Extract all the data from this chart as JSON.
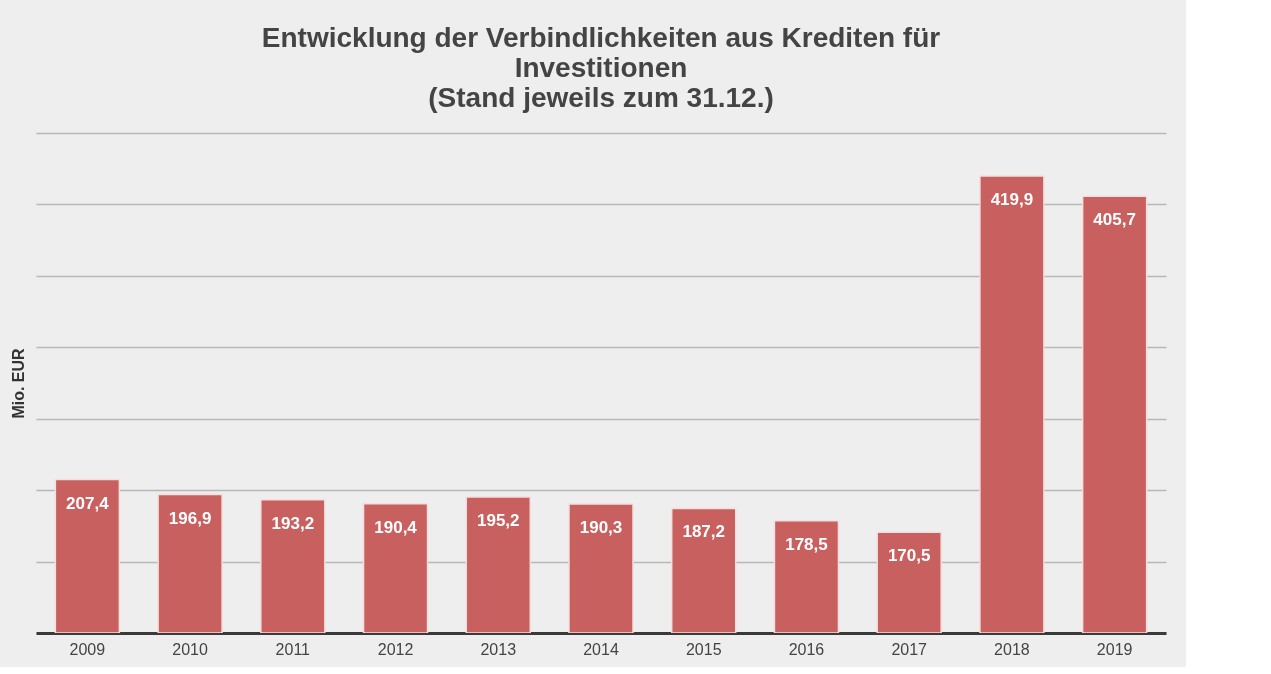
{
  "chart_data": {
    "type": "bar",
    "title": "Entwicklung der Verbindlichkeiten aus Krediten für\nInvestitionen\n(Stand jeweils zum 31.12.)",
    "ylabel": "Mio. EUR",
    "categories": [
      "2009",
      "2010",
      "2011",
      "2012",
      "2013",
      "2014",
      "2015",
      "2016",
      "2017",
      "2018",
      "2019"
    ],
    "values": [
      207.4,
      196.9,
      193.2,
      190.4,
      195.2,
      190.3,
      187.2,
      178.5,
      170.5,
      419.9,
      405.7
    ],
    "color": "#c8605f",
    "ylim": [
      100,
      450
    ],
    "yticks": [
      {
        "value": 100,
        "label": null
      },
      {
        "value": 150,
        "label": null
      },
      {
        "value": 200,
        "label": null
      },
      {
        "value": 250,
        "label": null
      },
      {
        "value": 300,
        "label": null
      },
      {
        "value": 350,
        "label": null
      },
      {
        "value": 400,
        "label": null
      },
      {
        "value": 450,
        "label": null
      }
    ],
    "value_labels": [
      "207,4",
      "196,9",
      "193,2",
      "190,4",
      "195,2",
      "190,3",
      "187,2",
      "178,5",
      "170,5",
      "419,9",
      "405,7"
    ],
    "grid": "y",
    "tick_labels": "x"
  }
}
